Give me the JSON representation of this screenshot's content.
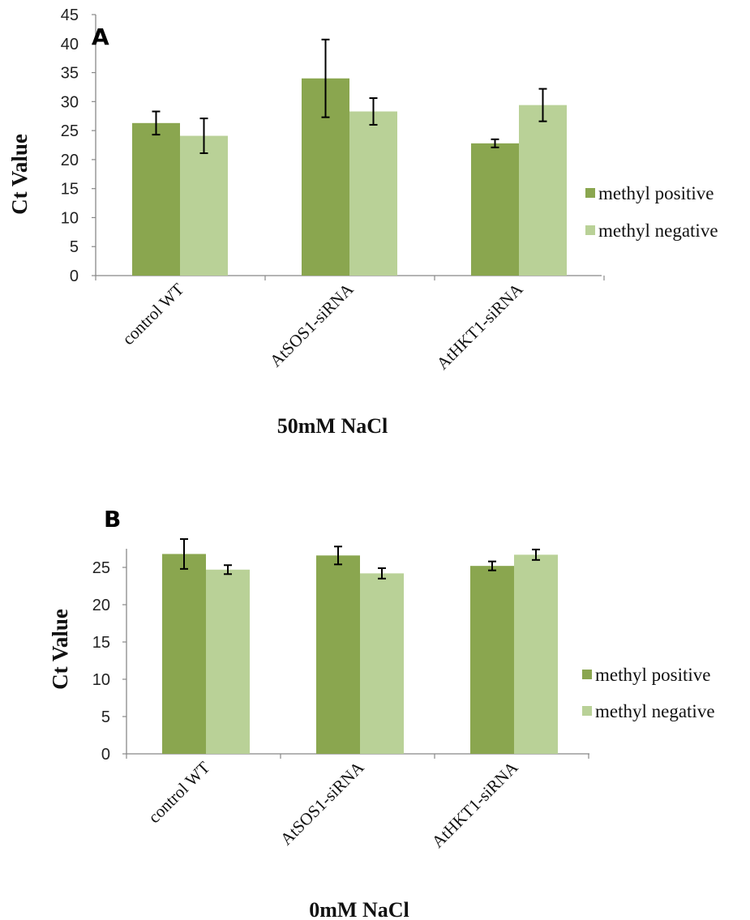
{
  "chart_data": [
    {
      "type": "bar",
      "panel_label": "A",
      "categories": [
        "control WT",
        "AtSOS1-siRNA",
        "AtHKT1-siRNA"
      ],
      "series": [
        {
          "name": "methyl positive",
          "values": [
            26.3,
            34.0,
            22.8
          ],
          "errors": [
            2.0,
            6.7,
            0.7
          ]
        },
        {
          "name": "methyl negative",
          "values": [
            24.1,
            28.3,
            29.4
          ],
          "errors": [
            3.0,
            2.3,
            2.8
          ]
        }
      ],
      "xlabel": "50mM NaCl",
      "ylabel": "Ct Value",
      "ylim": [
        0,
        45
      ],
      "yticks": [
        0,
        5,
        10,
        15,
        20,
        25,
        30,
        35,
        40,
        45
      ],
      "grid": false,
      "legend": "right",
      "colors": {
        "methyl positive": "#8aa64f",
        "methyl negative": "#b9d197"
      }
    },
    {
      "type": "bar",
      "panel_label": "B",
      "categories": [
        "control WT",
        "AtSOS1-siRNA",
        "AtHKT1-siRNA"
      ],
      "series": [
        {
          "name": "methyl positive",
          "values": [
            26.8,
            26.6,
            25.2
          ],
          "errors": [
            2.0,
            1.2,
            0.6
          ]
        },
        {
          "name": "methyl negative",
          "values": [
            24.7,
            24.2,
            26.7
          ],
          "errors": [
            0.6,
            0.7,
            0.7
          ]
        }
      ],
      "xlabel": "0mM NaCl",
      "ylabel": "Ct Value",
      "ylim": [
        0,
        27.5
      ],
      "yticks": [
        0,
        5,
        10,
        15,
        20,
        25
      ],
      "grid": false,
      "legend": "right",
      "colors": {
        "methyl positive": "#8aa64f",
        "methyl negative": "#b9d197"
      }
    }
  ]
}
